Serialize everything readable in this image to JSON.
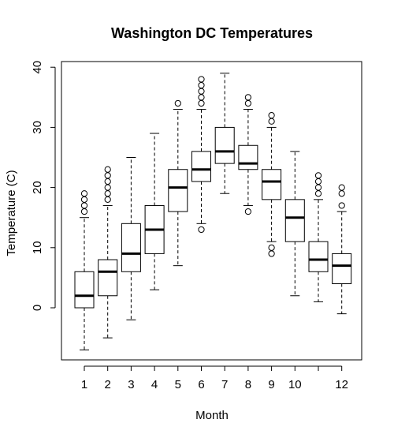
{
  "chart_data": {
    "type": "boxplot",
    "title": "Washington DC Temperatures",
    "xlabel": "Month",
    "ylabel": "Temperature (C)",
    "ylim": [
      -10,
      40
    ],
    "yticks": [
      0,
      10,
      20,
      30,
      40
    ],
    "categories": [
      "1",
      "2",
      "3",
      "4",
      "5",
      "6",
      "7",
      "8",
      "9",
      "10",
      "11",
      "12"
    ],
    "x_tick_labels_shown": [
      "1",
      "2",
      "3",
      "4",
      "5",
      "6",
      "7",
      "8",
      "9",
      "10",
      "",
      "12"
    ],
    "boxes": [
      {
        "month": "1",
        "whisker_low": -7,
        "q1": 0,
        "median": 2,
        "q3": 6,
        "whisker_high": 15,
        "outliers": [
          16,
          17,
          18,
          19
        ]
      },
      {
        "month": "2",
        "whisker_low": -5,
        "q1": 2,
        "median": 6,
        "q3": 8,
        "whisker_high": 17,
        "outliers": [
          18,
          19,
          20,
          21,
          22,
          23
        ]
      },
      {
        "month": "3",
        "whisker_low": -2,
        "q1": 6,
        "median": 9,
        "q3": 14,
        "whisker_high": 25,
        "outliers": []
      },
      {
        "month": "4",
        "whisker_low": 3,
        "q1": 9,
        "median": 13,
        "q3": 17,
        "whisker_high": 29,
        "outliers": []
      },
      {
        "month": "5",
        "whisker_low": 7,
        "q1": 16,
        "median": 20,
        "q3": 23,
        "whisker_high": 33,
        "outliers": [
          34
        ]
      },
      {
        "month": "6",
        "whisker_low": 14,
        "q1": 21,
        "median": 23,
        "q3": 26,
        "whisker_high": 33,
        "outliers": [
          13,
          34,
          35,
          36,
          37,
          38
        ]
      },
      {
        "month": "7",
        "whisker_low": 19,
        "q1": 24,
        "median": 26,
        "q3": 30,
        "whisker_high": 39,
        "outliers": []
      },
      {
        "month": "8",
        "whisker_low": 17,
        "q1": 23,
        "median": 24,
        "q3": 27,
        "whisker_high": 33,
        "outliers": [
          16,
          34,
          35
        ]
      },
      {
        "month": "9",
        "whisker_low": 11,
        "q1": 18,
        "median": 21,
        "q3": 23,
        "whisker_high": 30,
        "outliers": [
          9,
          10,
          31,
          32
        ]
      },
      {
        "month": "10",
        "whisker_low": 2,
        "q1": 11,
        "median": 15,
        "q3": 18,
        "whisker_high": 26,
        "outliers": []
      },
      {
        "month": "11",
        "whisker_low": 1,
        "q1": 6,
        "median": 8,
        "q3": 11,
        "whisker_high": 18,
        "outliers": [
          19,
          20,
          21,
          22
        ]
      },
      {
        "month": "12",
        "whisker_low": -1,
        "q1": 4,
        "median": 7,
        "q3": 9,
        "whisker_high": 16,
        "outliers": [
          17,
          19,
          20
        ]
      }
    ],
    "grid": false,
    "legend": "none",
    "colors": {
      "box_fill": "#ffffff",
      "stroke": "#000000",
      "background": "#ffffff"
    }
  }
}
